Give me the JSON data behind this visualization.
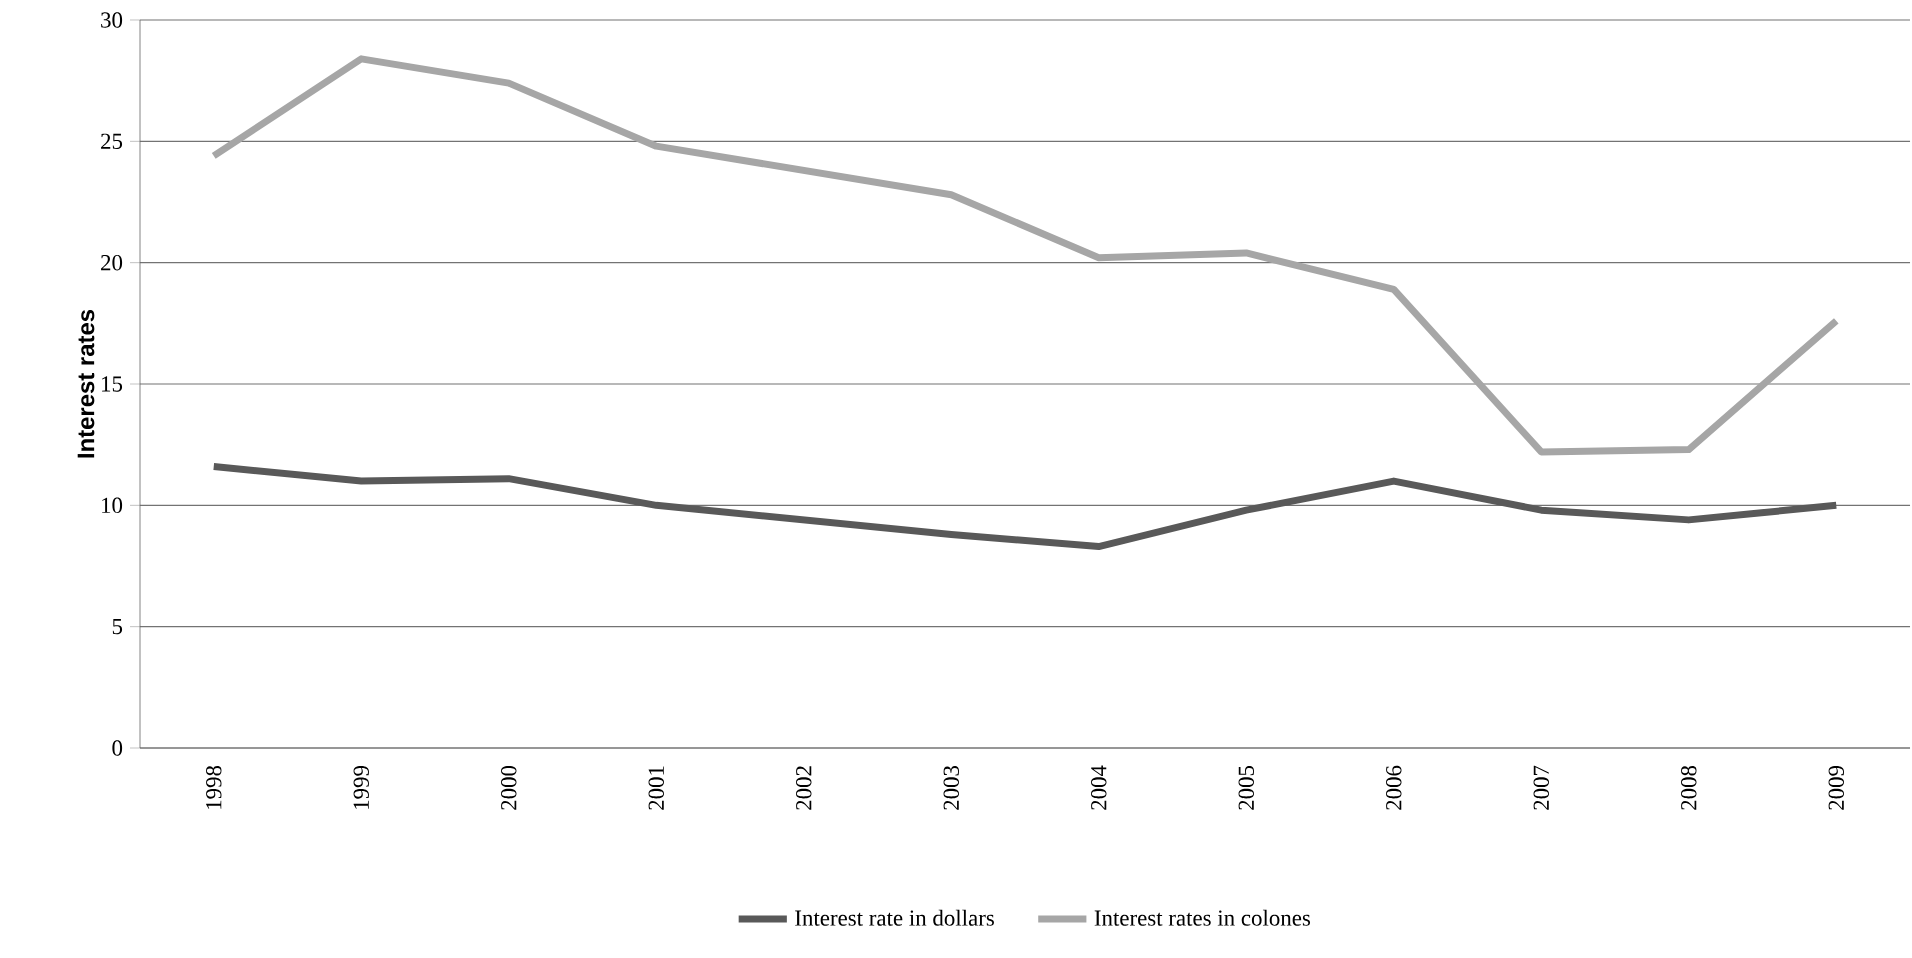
{
  "chart_data": {
    "type": "line",
    "ylabel": "Interest rates",
    "categories": [
      "1998",
      "1999",
      "2000",
      "2001",
      "2002",
      "2003",
      "2004",
      "2005",
      "2006",
      "2007",
      "2008",
      "2009"
    ],
    "series": [
      {
        "name": "Interest rate in dollars",
        "color": "#595959",
        "values": [
          11.6,
          11.0,
          11.1,
          10.0,
          9.4,
          8.8,
          8.3,
          9.8,
          11.0,
          9.8,
          9.4,
          10.0
        ]
      },
      {
        "name": "Interest rates in colones",
        "color": "#a6a6a6",
        "values": [
          24.4,
          28.4,
          27.4,
          24.8,
          23.8,
          22.8,
          20.2,
          20.4,
          18.9,
          12.2,
          12.3,
          17.6
        ]
      }
    ],
    "ylim": [
      0,
      30
    ],
    "yticks": [
      0,
      5,
      10,
      15,
      20,
      25,
      30
    ],
    "grid": "y",
    "legend": "bottom",
    "marker": "none",
    "line_style": "solid"
  }
}
